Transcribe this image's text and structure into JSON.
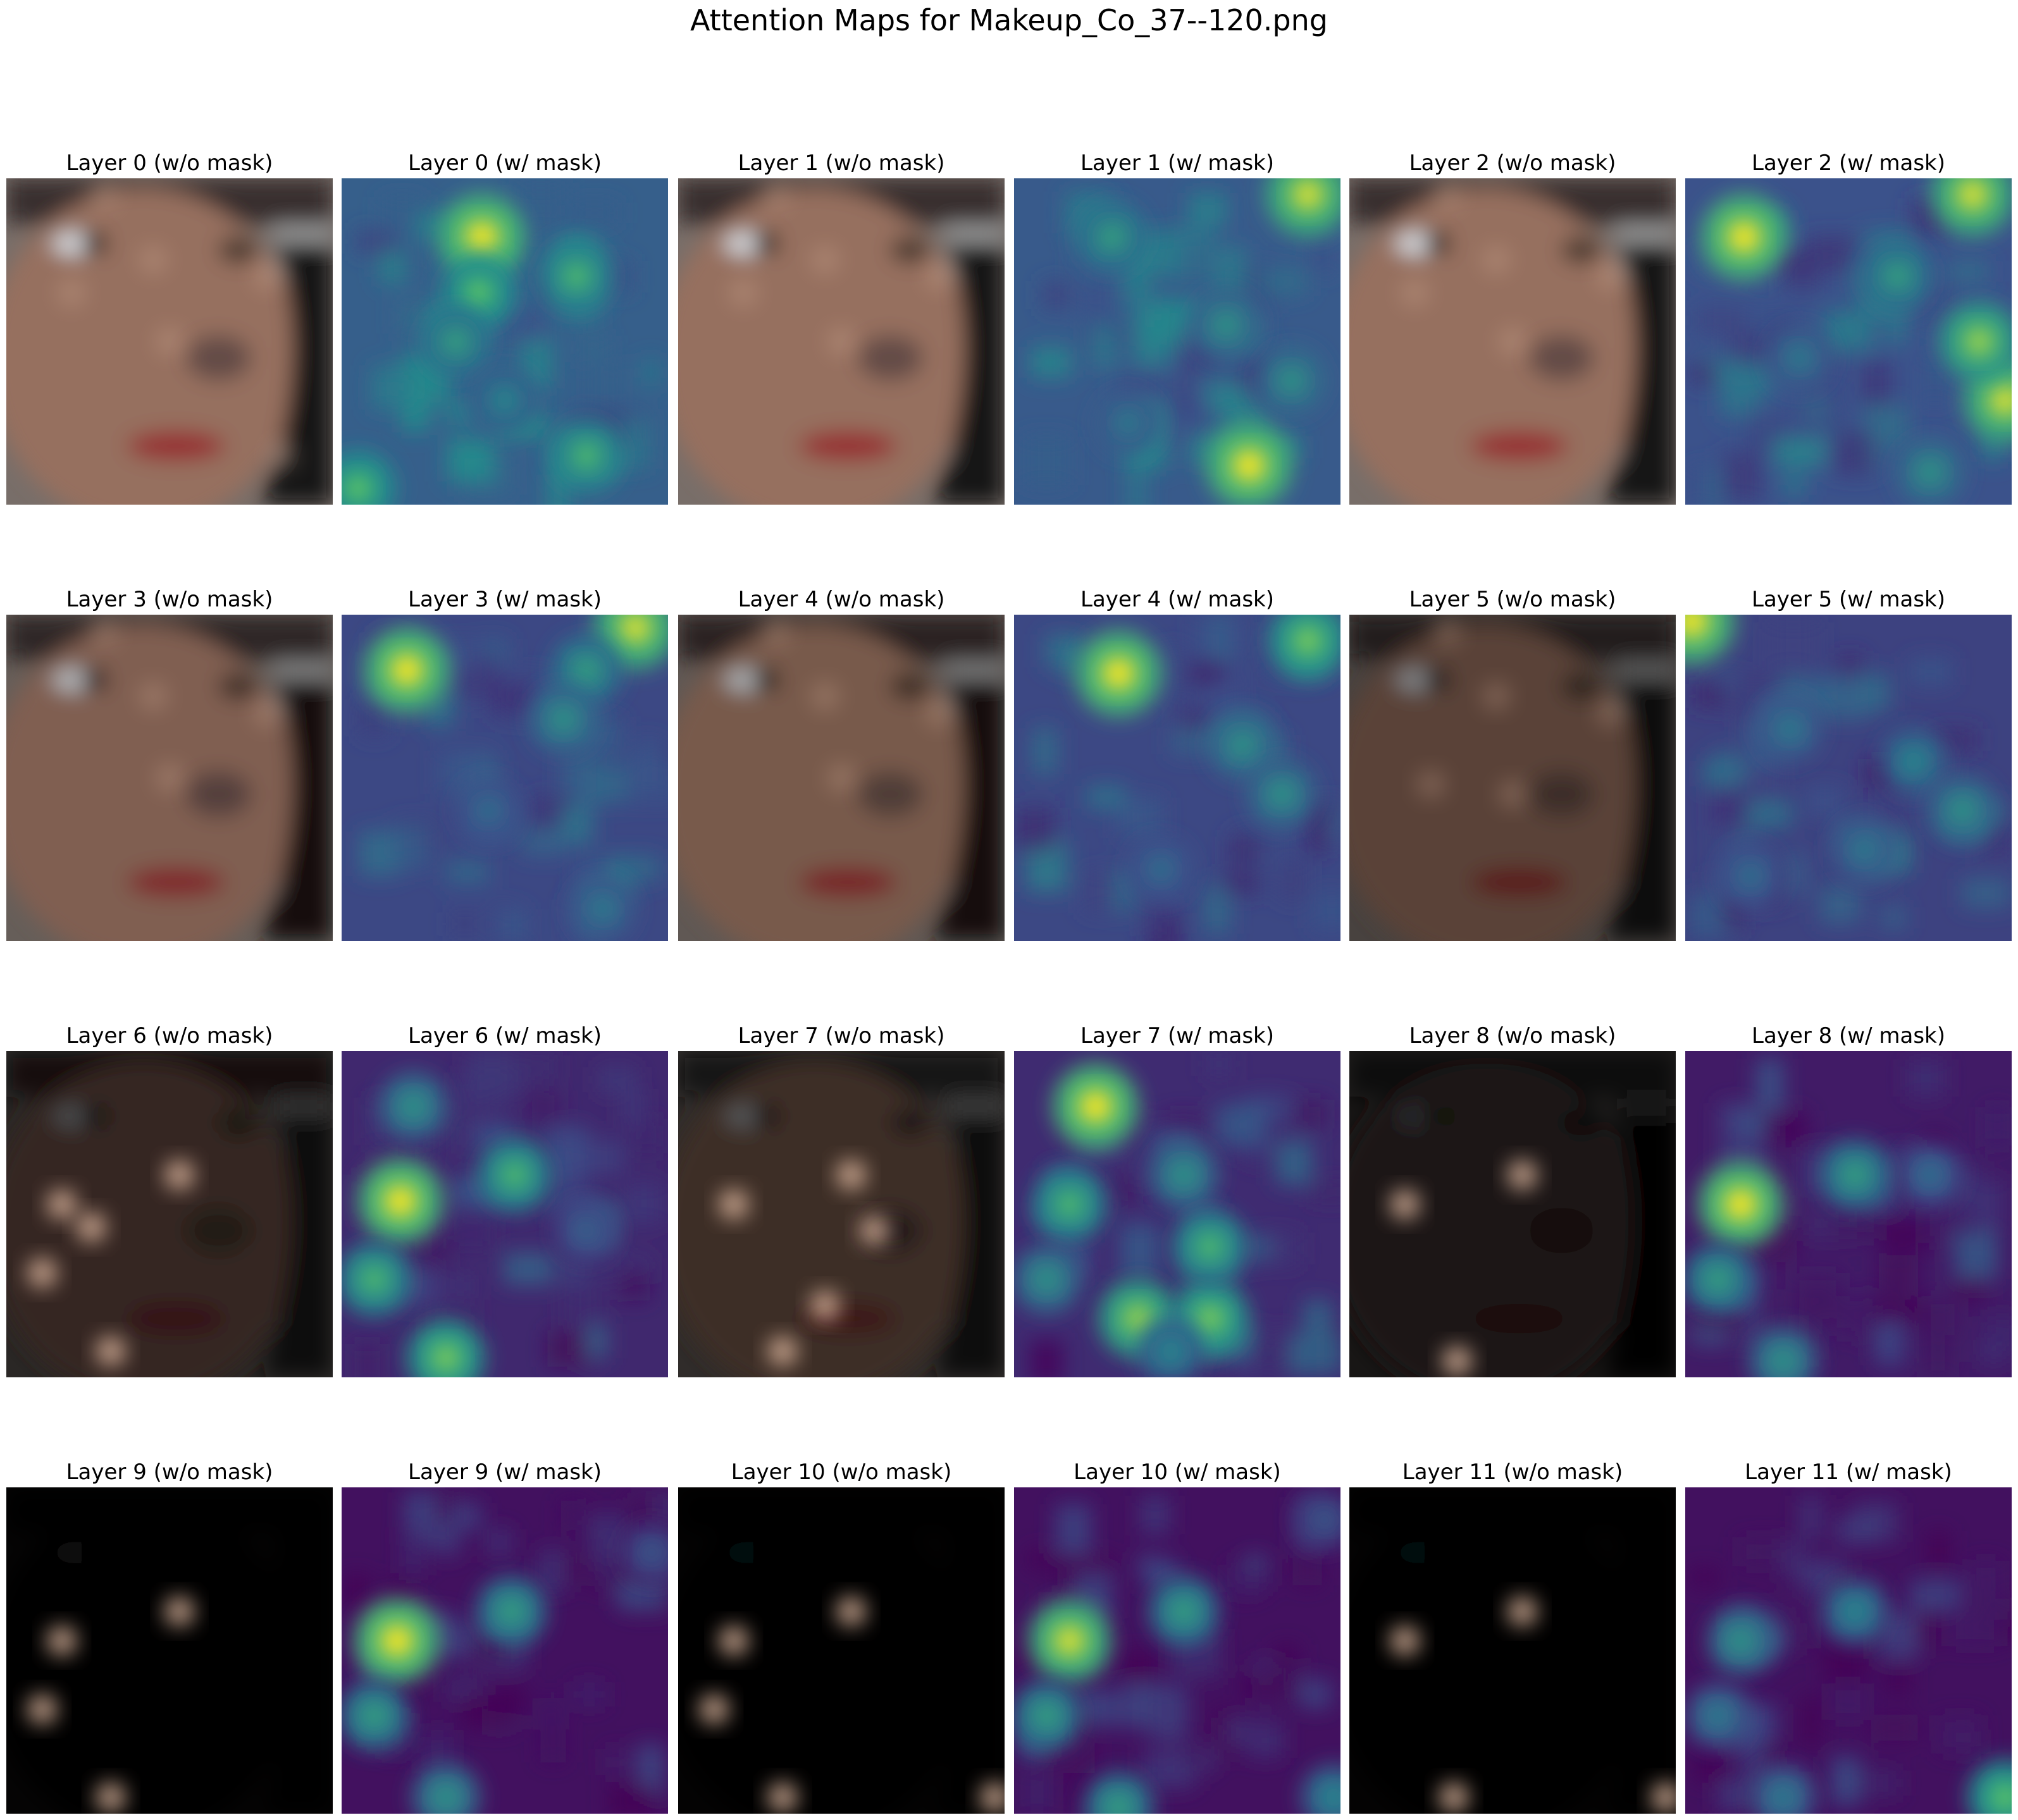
{
  "figure": {
    "title": "Attention Maps for Makeup_Co_37--120.png"
  },
  "chart_data": {
    "type": "heatmap",
    "title": "Attention Maps for Makeup_Co_37--120.png",
    "colormap": "viridis",
    "grid": false,
    "axes": "off",
    "rows": 4,
    "cols": 6,
    "panels": [
      {
        "title": "Layer 0 (w/o mask)",
        "kind": "image",
        "brightness": 1.0,
        "spots": [
          [
            0.3,
            0.05
          ],
          [
            0.45,
            0.25
          ],
          [
            0.2,
            0.35
          ],
          [
            0.8,
            0.3
          ],
          [
            0.5,
            0.5
          ],
          [
            0.85,
            0.85
          ]
        ]
      },
      {
        "title": "Layer 0 (w/ mask)",
        "kind": "attention",
        "base": 0.3,
        "spots": [
          [
            0.43,
            0.18,
            1.0
          ],
          [
            0.42,
            0.35,
            0.75
          ],
          [
            0.72,
            0.3,
            0.7
          ],
          [
            0.35,
            0.5,
            0.6
          ],
          [
            0.75,
            0.85,
            0.7
          ],
          [
            0.05,
            0.95,
            0.75
          ],
          [
            0.5,
            0.68,
            0.5
          ]
        ]
      },
      {
        "title": "Layer 1 (w/o mask)",
        "kind": "image",
        "brightness": 1.0,
        "spots": [
          [
            0.3,
            0.05
          ],
          [
            0.45,
            0.25
          ],
          [
            0.2,
            0.35
          ],
          [
            0.8,
            0.3
          ],
          [
            0.5,
            0.5
          ]
        ]
      },
      {
        "title": "Layer 1 (w/ mask)",
        "kind": "attention",
        "base": 0.28,
        "spots": [
          [
            0.9,
            0.05,
            0.95
          ],
          [
            0.72,
            0.88,
            1.0
          ],
          [
            0.3,
            0.18,
            0.6
          ],
          [
            0.65,
            0.45,
            0.55
          ],
          [
            0.85,
            0.62,
            0.55
          ],
          [
            0.35,
            0.75,
            0.45
          ]
        ]
      },
      {
        "title": "Layer 2 (w/o mask)",
        "kind": "image",
        "brightness": 1.0,
        "spots": [
          [
            0.3,
            0.05
          ],
          [
            0.45,
            0.25
          ],
          [
            0.2,
            0.35
          ],
          [
            0.8,
            0.3
          ],
          [
            0.5,
            0.5
          ]
        ]
      },
      {
        "title": "Layer 2 (w/ mask)",
        "kind": "attention",
        "base": 0.25,
        "spots": [
          [
            0.18,
            0.18,
            1.0
          ],
          [
            0.88,
            0.05,
            0.95
          ],
          [
            0.98,
            0.68,
            0.95
          ],
          [
            0.9,
            0.5,
            0.85
          ],
          [
            0.65,
            0.3,
            0.6
          ],
          [
            0.75,
            0.9,
            0.55
          ],
          [
            0.35,
            0.55,
            0.45
          ]
        ]
      },
      {
        "title": "Layer 3 (w/o mask)",
        "kind": "image",
        "brightness": 0.85,
        "spots": [
          [
            0.3,
            0.05
          ],
          [
            0.45,
            0.25
          ],
          [
            0.8,
            0.3
          ],
          [
            0.5,
            0.5
          ]
        ]
      },
      {
        "title": "Layer 3 (w/ mask)",
        "kind": "attention",
        "base": 0.22,
        "spots": [
          [
            0.2,
            0.17,
            1.0
          ],
          [
            0.9,
            0.04,
            0.95
          ],
          [
            0.75,
            0.17,
            0.6
          ],
          [
            0.68,
            0.32,
            0.55
          ],
          [
            0.45,
            0.6,
            0.4
          ],
          [
            0.8,
            0.9,
            0.45
          ]
        ]
      },
      {
        "title": "Layer 4 (w/o mask)",
        "kind": "image",
        "brightness": 0.8,
        "spots": [
          [
            0.3,
            0.05
          ],
          [
            0.45,
            0.25
          ],
          [
            0.8,
            0.3
          ],
          [
            0.5,
            0.5
          ]
        ]
      },
      {
        "title": "Layer 4 (w/ mask)",
        "kind": "attention",
        "base": 0.22,
        "spots": [
          [
            0.32,
            0.18,
            1.0
          ],
          [
            0.9,
            0.08,
            0.8
          ],
          [
            0.7,
            0.4,
            0.55
          ],
          [
            0.82,
            0.55,
            0.55
          ],
          [
            0.45,
            0.78,
            0.4
          ]
        ]
      },
      {
        "title": "Layer 5 (w/o mask)",
        "kind": "image",
        "brightness": 0.6,
        "spots": [
          [
            0.3,
            0.05
          ],
          [
            0.45,
            0.25
          ],
          [
            0.8,
            0.3
          ],
          [
            0.25,
            0.52
          ],
          [
            0.5,
            0.55
          ]
        ]
      },
      {
        "title": "Layer 5 (w/ mask)",
        "kind": "attention",
        "base": 0.2,
        "spots": [
          [
            0.02,
            0.02,
            1.0
          ],
          [
            0.32,
            0.35,
            0.45
          ],
          [
            0.7,
            0.45,
            0.5
          ],
          [
            0.85,
            0.6,
            0.55
          ],
          [
            0.55,
            0.72,
            0.45
          ],
          [
            0.2,
            0.8,
            0.4
          ]
        ]
      },
      {
        "title": "Layer 6 (w/o mask)",
        "kind": "image",
        "brightness": 0.35,
        "spots": [
          [
            0.17,
            0.47
          ],
          [
            0.26,
            0.54
          ],
          [
            0.53,
            0.38
          ],
          [
            0.11,
            0.68
          ],
          [
            0.32,
            0.92
          ]
        ]
      },
      {
        "title": "Layer 6 (w/ mask)",
        "kind": "attention",
        "base": 0.12,
        "spots": [
          [
            0.18,
            0.46,
            1.0
          ],
          [
            0.53,
            0.38,
            0.7
          ],
          [
            0.1,
            0.7,
            0.7
          ],
          [
            0.32,
            0.94,
            0.8
          ],
          [
            0.22,
            0.17,
            0.55
          ],
          [
            0.75,
            0.55,
            0.35
          ]
        ]
      },
      {
        "title": "Layer 7 (w/o mask)",
        "kind": "image",
        "brightness": 0.4,
        "spots": [
          [
            0.17,
            0.47
          ],
          [
            0.53,
            0.38
          ],
          [
            0.6,
            0.55
          ],
          [
            0.45,
            0.78
          ],
          [
            0.32,
            0.92
          ]
        ]
      },
      {
        "title": "Layer 7 (w/ mask)",
        "kind": "attention",
        "base": 0.13,
        "spots": [
          [
            0.25,
            0.17,
            1.0
          ],
          [
            0.17,
            0.47,
            0.7
          ],
          [
            0.52,
            0.38,
            0.55
          ],
          [
            0.38,
            0.82,
            0.85
          ],
          [
            0.6,
            0.82,
            0.8
          ],
          [
            0.6,
            0.6,
            0.7
          ],
          [
            0.1,
            0.7,
            0.55
          ],
          [
            0.48,
            0.92,
            0.5
          ]
        ]
      },
      {
        "title": "Layer 8 (w/o mask)",
        "kind": "image",
        "brightness": 0.2,
        "spots": [
          [
            0.17,
            0.47
          ],
          [
            0.53,
            0.38
          ],
          [
            0.33,
            0.95
          ]
        ]
      },
      {
        "title": "Layer 8 (w/ mask)",
        "kind": "attention",
        "base": 0.08,
        "spots": [
          [
            0.17,
            0.47,
            1.0
          ],
          [
            0.52,
            0.38,
            0.6
          ],
          [
            0.1,
            0.7,
            0.6
          ],
          [
            0.3,
            0.95,
            0.55
          ],
          [
            0.75,
            0.38,
            0.4
          ]
        ]
      },
      {
        "title": "Layer 9 (w/o mask)",
        "kind": "image",
        "brightness": 0.04,
        "spots": [
          [
            0.17,
            0.47
          ],
          [
            0.53,
            0.38
          ],
          [
            0.11,
            0.68
          ],
          [
            0.32,
            0.95
          ]
        ]
      },
      {
        "title": "Layer 9 (w/ mask)",
        "kind": "attention",
        "base": 0.05,
        "spots": [
          [
            0.17,
            0.47,
            1.0
          ],
          [
            0.52,
            0.38,
            0.6
          ],
          [
            0.1,
            0.7,
            0.6
          ],
          [
            0.32,
            0.95,
            0.55
          ],
          [
            0.95,
            0.2,
            0.3
          ]
        ]
      },
      {
        "title": "Layer 10 (w/o mask)",
        "kind": "image",
        "brightness": 0.03,
        "spots": [
          [
            0.17,
            0.47
          ],
          [
            0.53,
            0.38
          ],
          [
            0.11,
            0.68
          ],
          [
            0.32,
            0.95
          ],
          [
            0.97,
            0.95
          ]
        ]
      },
      {
        "title": "Layer 10 (w/ mask)",
        "kind": "attention",
        "base": 0.05,
        "spots": [
          [
            0.17,
            0.47,
            0.95
          ],
          [
            0.52,
            0.38,
            0.6
          ],
          [
            0.1,
            0.7,
            0.6
          ],
          [
            0.32,
            0.98,
            0.6
          ],
          [
            0.98,
            0.95,
            0.5
          ],
          [
            0.95,
            0.1,
            0.3
          ]
        ]
      },
      {
        "title": "Layer 11 (w/o mask)",
        "kind": "image",
        "brightness": 0.03,
        "spots": [
          [
            0.53,
            0.38
          ],
          [
            0.17,
            0.47
          ],
          [
            0.32,
            0.95
          ],
          [
            0.97,
            0.95
          ]
        ]
      },
      {
        "title": "Layer 11 (w/ mask)",
        "kind": "attention",
        "base": 0.05,
        "spots": [
          [
            0.17,
            0.47,
            0.55
          ],
          [
            0.52,
            0.38,
            0.5
          ],
          [
            0.1,
            0.7,
            0.45
          ],
          [
            0.98,
            0.95,
            0.75
          ],
          [
            0.3,
            0.95,
            0.45
          ]
        ]
      }
    ]
  }
}
